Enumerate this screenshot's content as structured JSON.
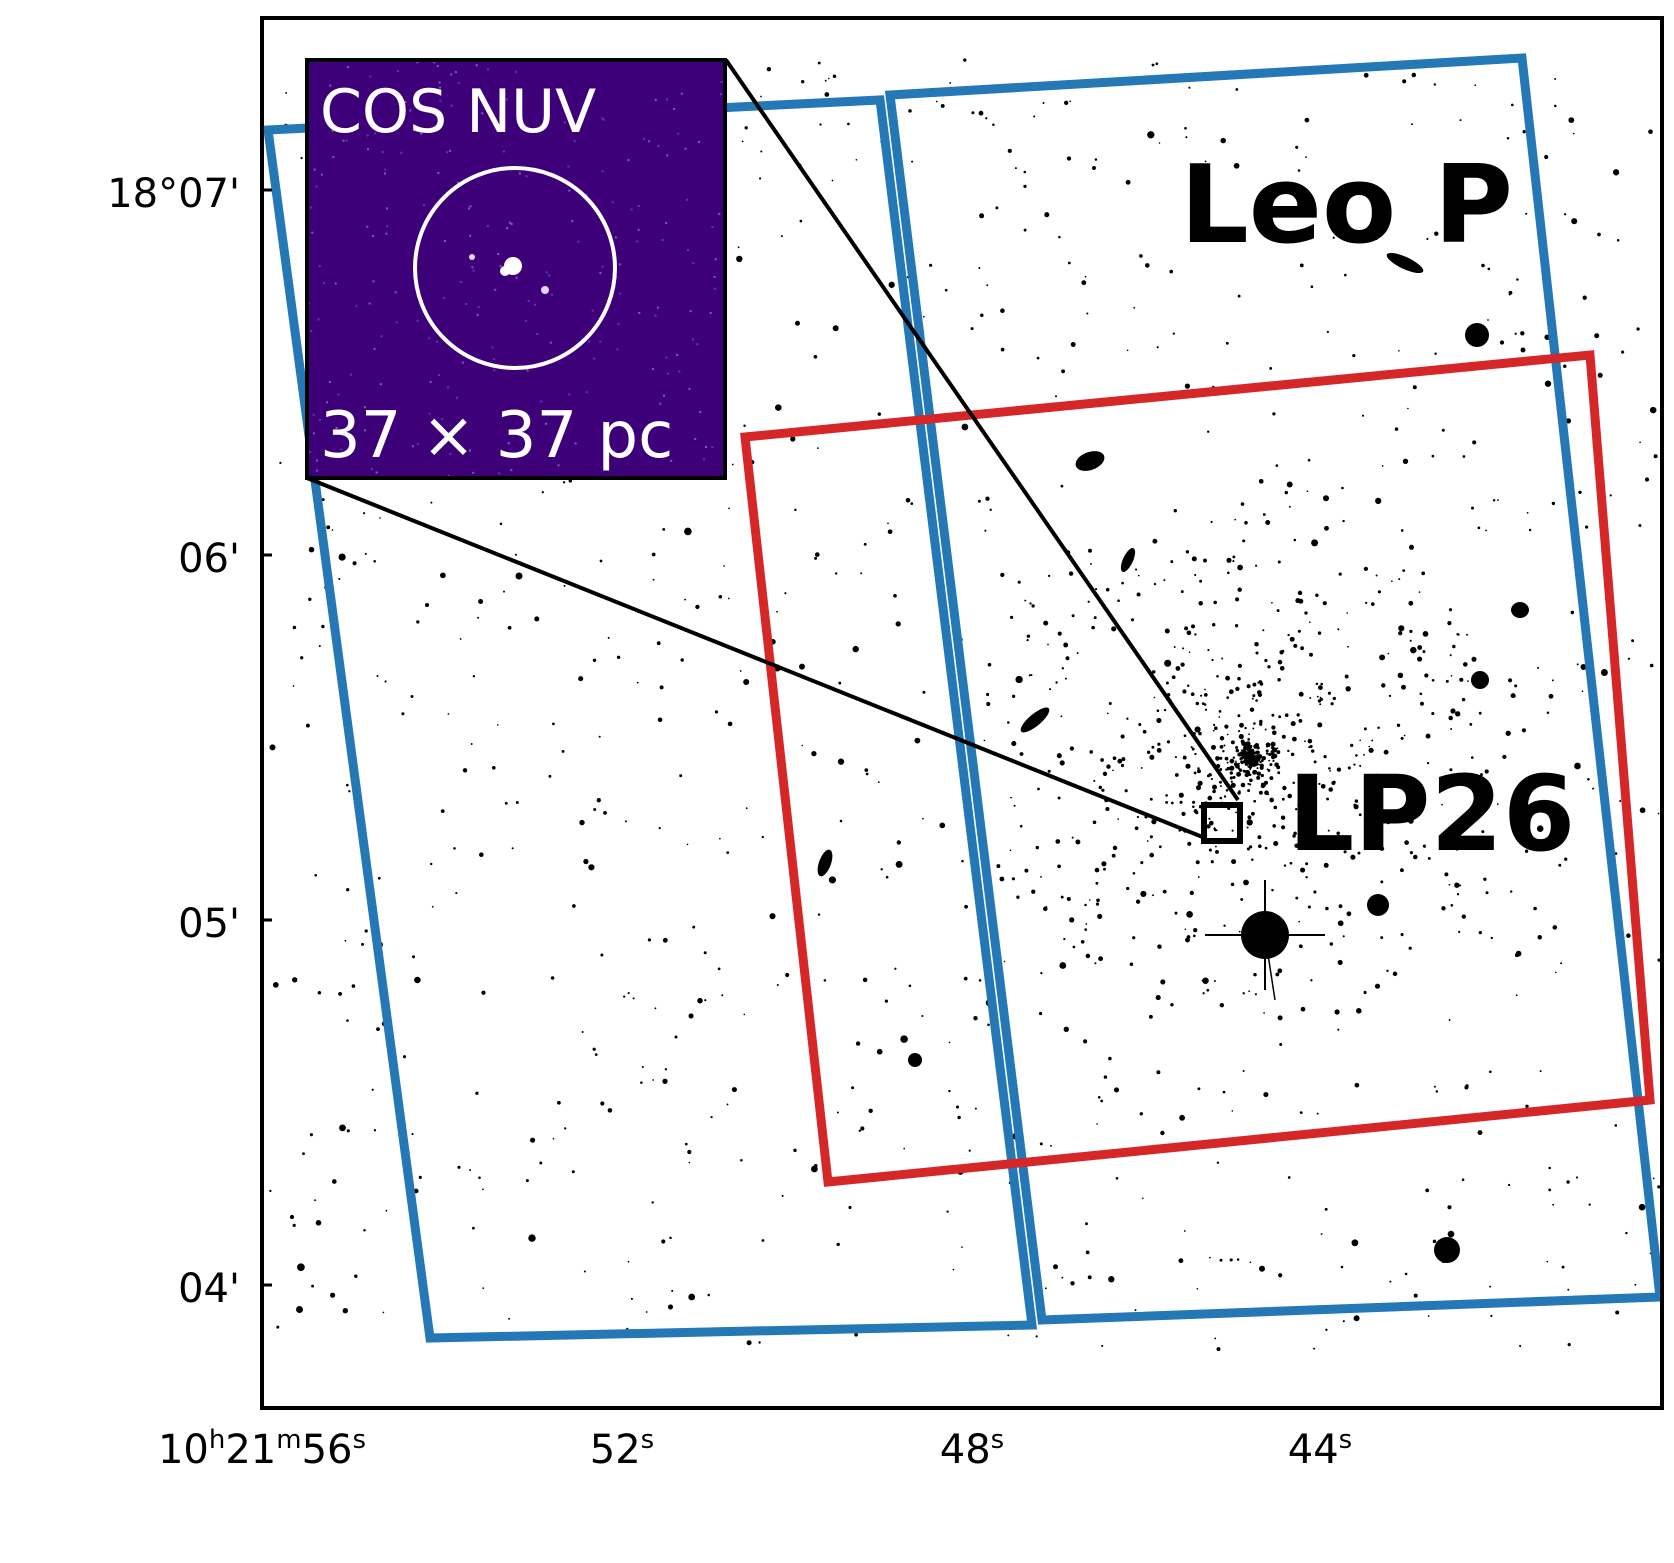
{
  "target_name": "Leo P",
  "source_name": "LP26",
  "inset": {
    "title": "COS NUV",
    "scale_label": "37 × 37 pc"
  },
  "axes": {
    "ra_ticks": [
      {
        "h": "10",
        "m": "21",
        "s": "56"
      },
      {
        "s": "52"
      },
      {
        "s": "48"
      },
      {
        "s": "44"
      }
    ],
    "dec_ticks": [
      "18°07'",
      "06'",
      "05'",
      "04'"
    ]
  },
  "colors": {
    "hst_footprint": "#2378b5",
    "jwst_footprint": "#d62728",
    "inset_background": "#3e0078",
    "frame": "#000000"
  }
}
